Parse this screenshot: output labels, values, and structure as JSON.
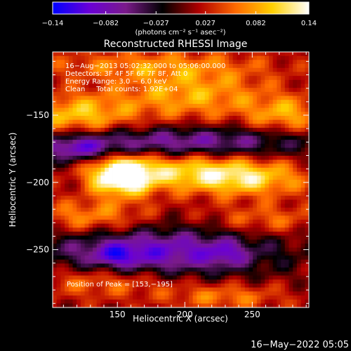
{
  "chart_data": {
    "type": "heatmap",
    "title": "Reconstructed RHESSI Image",
    "xlabel": "Heliocentric X (arcsec)",
    "ylabel": "Heliocentric Y (arcsec)",
    "xlim": [
      102,
      292
    ],
    "ylim": [
      -293,
      -103
    ],
    "x_ticks": [
      150,
      200,
      250
    ],
    "y_ticks": [
      -150,
      -200,
      -250
    ],
    "x_tick_labels": [
      "150",
      "200",
      "250"
    ],
    "y_tick_labels": [
      "−150",
      "−200",
      "−250"
    ],
    "colorbar": {
      "min": -0.14,
      "max": 0.14,
      "ticks": [
        -0.14,
        -0.082,
        -0.027,
        0.027,
        0.082,
        0.14
      ],
      "tick_labels": [
        "−0.14",
        "−0.082",
        "−0.027",
        "0.027",
        "0.082",
        "0.14"
      ],
      "label": "(photons cm⁻² s⁻¹ asec⁻²)",
      "colors": [
        "#0000ff",
        "#6a00d6",
        "#7a1a8a",
        "#000000",
        "#b00000",
        "#ff6a00",
        "#ffd000",
        "#ffffff"
      ]
    },
    "annotations": [
      "16−Aug−2013 05:02:32.000 to 05:06:00.000",
      "Detectors: 3F 4F 5F 6F 7F 8F, Att 0",
      "Energy Range: 3.0 − 6.0 keV",
      "Clean     Total counts: 1.92E+04",
      "Position of Peak = [153,−195]"
    ],
    "peak": {
      "x": 153,
      "y": -195,
      "value": 0.14
    },
    "sources": [
      {
        "x": 153,
        "y": -195,
        "sx": 16,
        "sy": 10,
        "amp": 0.16
      },
      {
        "x": 205,
        "y": -192,
        "sx": 38,
        "sy": 10,
        "amp": 0.085
      },
      {
        "x": 250,
        "y": -198,
        "sx": 30,
        "sy": 9,
        "amp": 0.07
      },
      {
        "x": 120,
        "y": -150,
        "sx": 28,
        "sy": 11,
        "amp": 0.08
      },
      {
        "x": 205,
        "y": -135,
        "sx": 40,
        "sy": 13,
        "amp": 0.07
      },
      {
        "x": 275,
        "y": -150,
        "sx": 20,
        "sy": 10,
        "amp": 0.065
      },
      {
        "x": 175,
        "y": -113,
        "sx": 60,
        "sy": 8,
        "amp": 0.05
      },
      {
        "x": 130,
        "y": -226,
        "sx": 30,
        "sy": 9,
        "amp": 0.06
      },
      {
        "x": 260,
        "y": -228,
        "sx": 30,
        "sy": 8,
        "amp": 0.045
      },
      {
        "x": 140,
        "y": -273,
        "sx": 40,
        "sy": 9,
        "amp": 0.055
      },
      {
        "x": 230,
        "y": -285,
        "sx": 30,
        "sy": 7,
        "amp": 0.05
      },
      {
        "x": 200,
        "y": -170,
        "sx": 70,
        "sy": 8,
        "amp": -0.09
      },
      {
        "x": 120,
        "y": -175,
        "sx": 20,
        "sy": 7,
        "amp": -0.08
      },
      {
        "x": 180,
        "y": -252,
        "sx": 60,
        "sy": 13,
        "amp": -0.11
      },
      {
        "x": 150,
        "y": -255,
        "sx": 12,
        "sy": 6,
        "amp": -0.05
      },
      {
        "x": 230,
        "y": -253,
        "sx": 10,
        "sy": 6,
        "amp": -0.04
      }
    ]
  },
  "footer": {
    "timestamp": "16−May−2022 05:05"
  }
}
